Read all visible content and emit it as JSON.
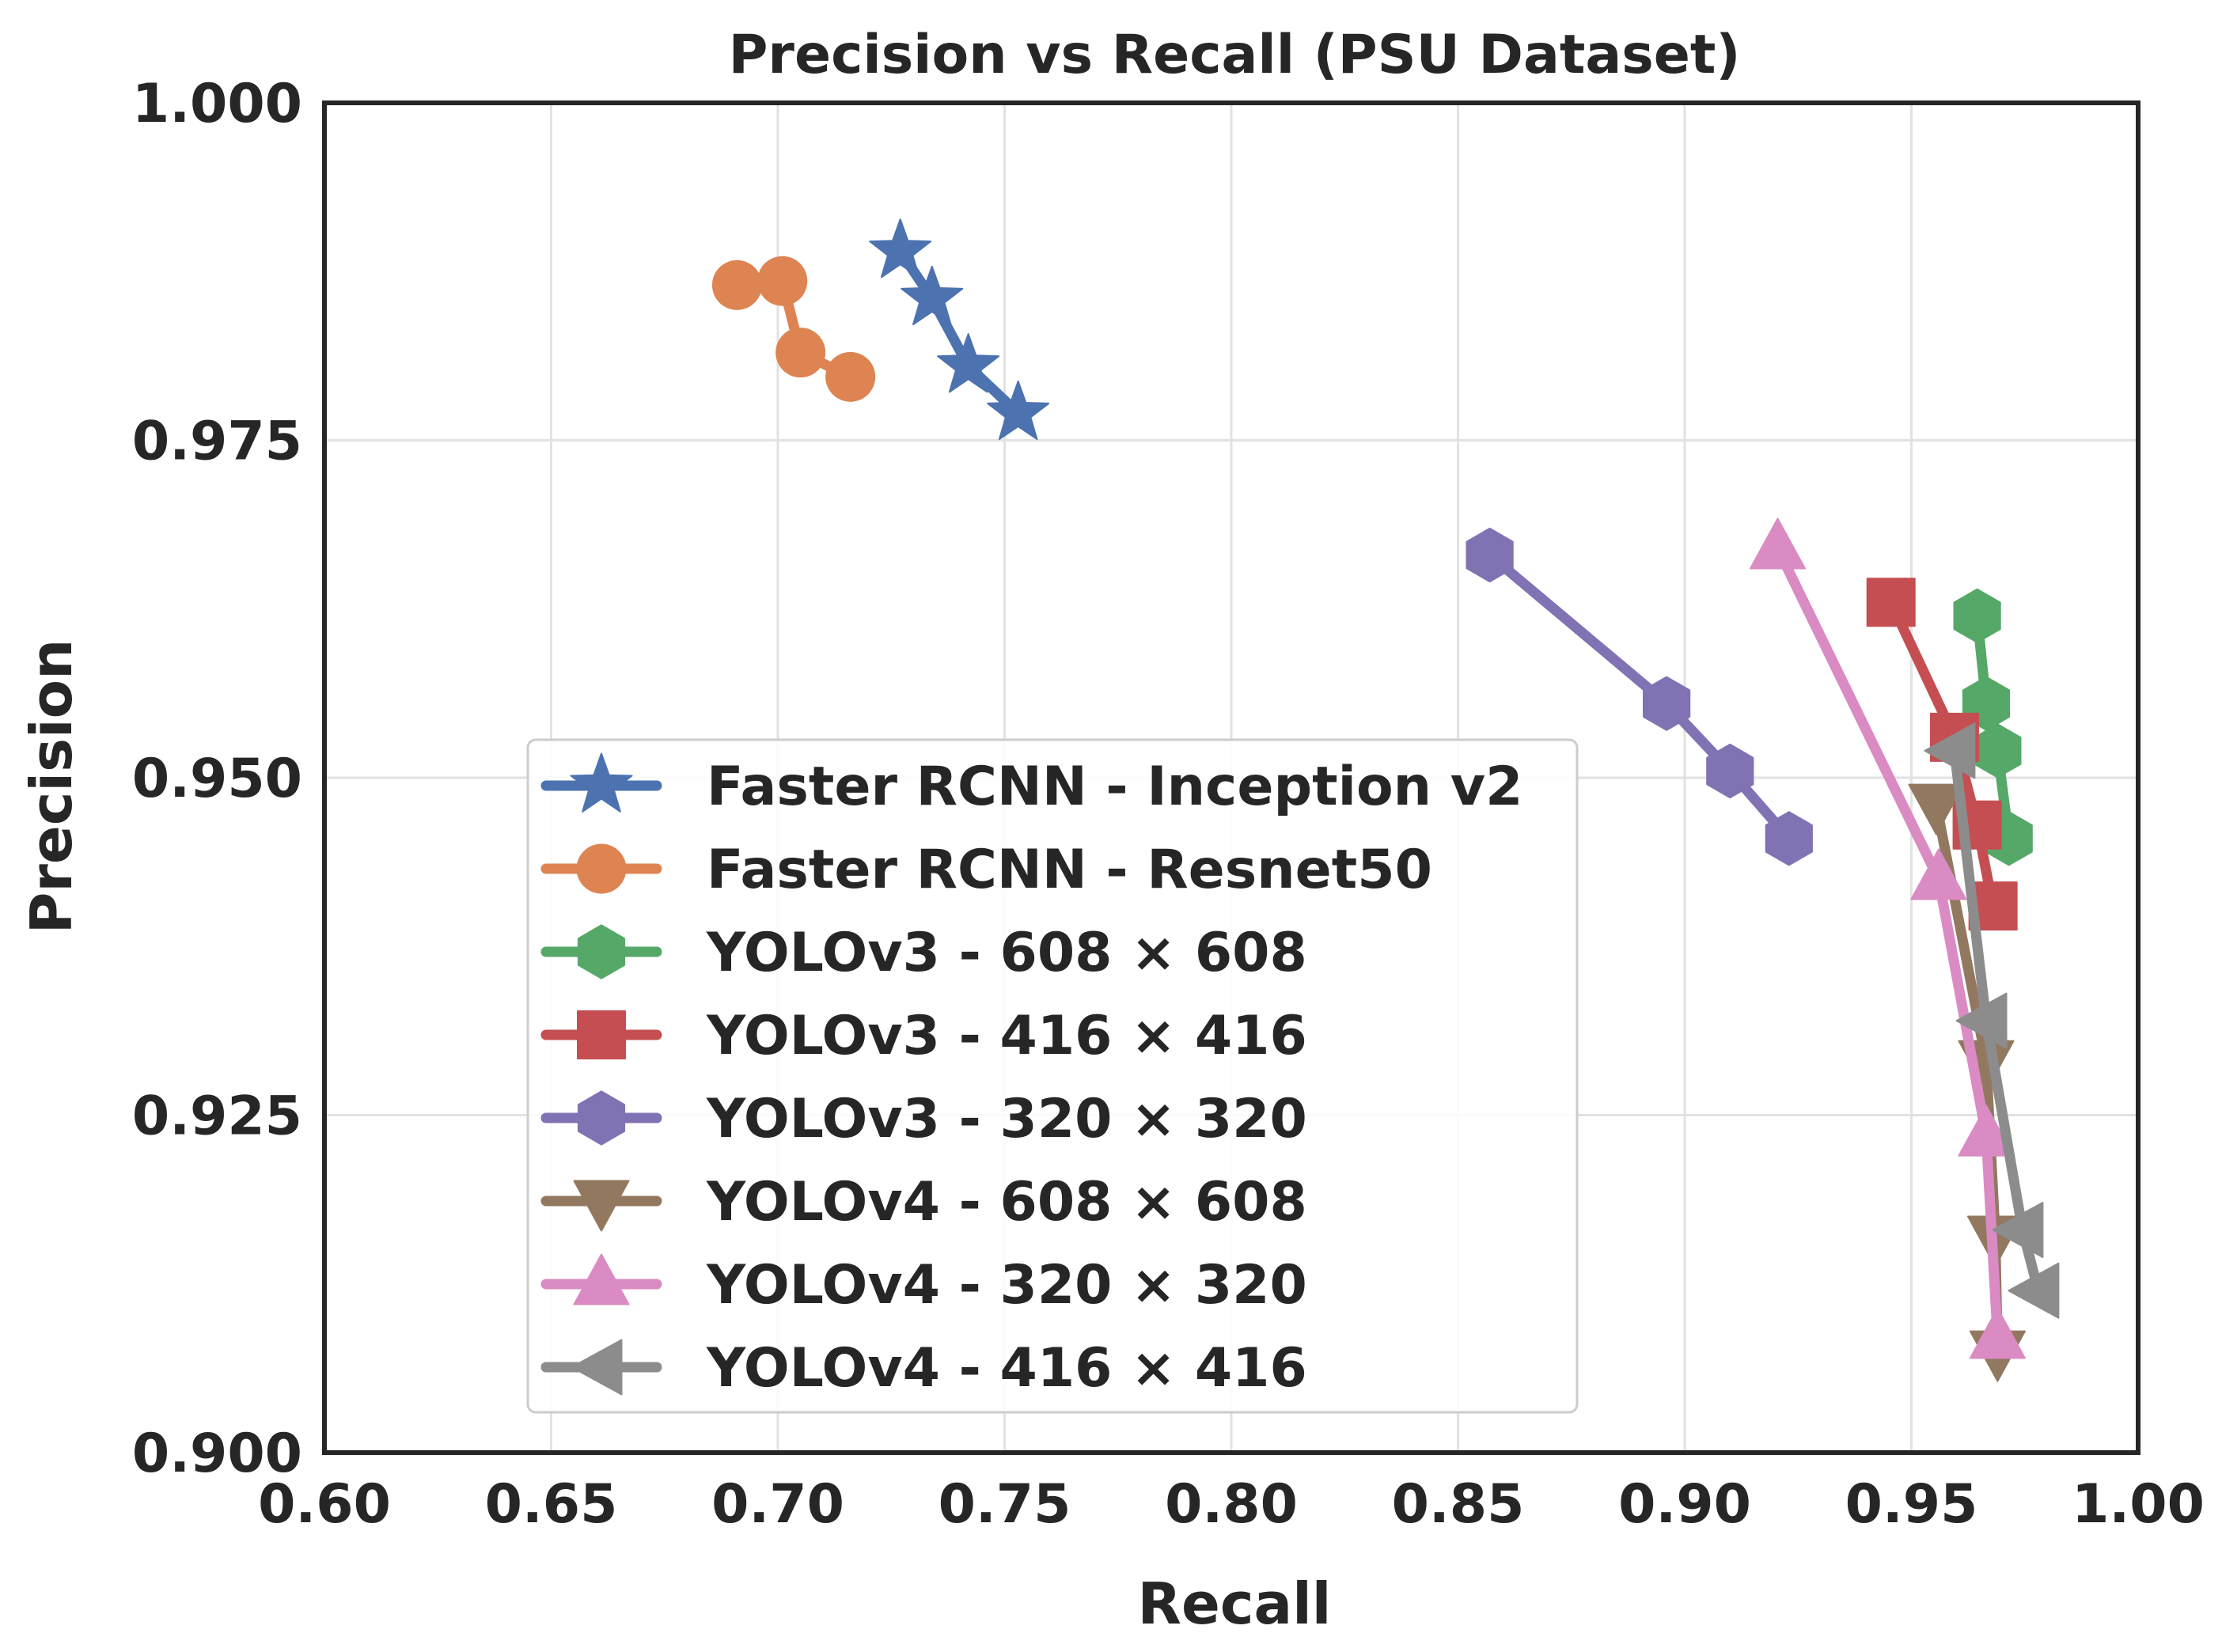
{
  "chart_data": {
    "type": "line",
    "title": "Precision vs Recall (PSU Dataset)",
    "xlabel": "Recall",
    "ylabel": "Precision",
    "xlim": [
      0.6,
      1.0
    ],
    "ylim": [
      0.9,
      1.0
    ],
    "xticks": [
      0.6,
      0.65,
      0.7,
      0.75,
      0.8,
      0.85,
      0.9,
      0.95,
      1.0
    ],
    "xtick_labels": [
      "0.60",
      "0.65",
      "0.70",
      "0.75",
      "0.80",
      "0.85",
      "0.90",
      "0.95",
      "1.00"
    ],
    "yticks": [
      0.9,
      0.925,
      0.95,
      0.975,
      1.0
    ],
    "ytick_labels": [
      "0.900",
      "0.925",
      "0.950",
      "0.975",
      "1.000"
    ],
    "grid": true,
    "legend_position": "lower-left",
    "series": [
      {
        "name": "Faster RCNN - Inception v2",
        "marker": "star",
        "color": "#4c72b0",
        "x": [
          0.727,
          0.734,
          0.742,
          0.753
        ],
        "y": [
          0.989,
          0.9855,
          0.9805,
          0.977
        ]
      },
      {
        "name": "Faster RCNN - Resnet50",
        "marker": "circle",
        "color": "#dd8452",
        "x": [
          0.691,
          0.701,
          0.705,
          0.716
        ],
        "y": [
          0.9865,
          0.9868,
          0.9815,
          0.9797
        ]
      },
      {
        "name": "YOLOv3 - 608 × 608",
        "marker": "hexagon",
        "color": "#55a868",
        "x": [
          0.9645,
          0.9665,
          0.969,
          0.9715
        ],
        "y": [
          0.962,
          0.9555,
          0.952,
          0.9455
        ]
      },
      {
        "name": "YOLOv3 - 416 × 416",
        "marker": "square",
        "color": "#c44e52",
        "x": [
          0.9455,
          0.9595,
          0.9645,
          0.968
        ],
        "y": [
          0.963,
          0.953,
          0.9465,
          0.9405
        ]
      },
      {
        "name": "YOLOv3 - 320 × 320",
        "marker": "hexagon",
        "color": "#8172b3",
        "x": [
          0.857,
          0.896,
          0.91,
          0.923
        ],
        "y": [
          0.9665,
          0.9555,
          0.9505,
          0.9455
        ]
      },
      {
        "name": "YOLOv4 - 608 × 608",
        "marker": "triangle-down",
        "color": "#937860",
        "x": [
          0.9555,
          0.9665,
          0.9685,
          0.969
        ],
        "y": [
          0.948,
          0.929,
          0.916,
          0.9075
        ]
      },
      {
        "name": "YOLOv4 - 320 × 320",
        "marker": "triangle-up",
        "color": "#da8bc3",
        "x": [
          0.9205,
          0.956,
          0.9665,
          0.969
        ],
        "y": [
          0.967,
          0.9425,
          0.9235,
          0.9085
        ]
      },
      {
        "name": "YOLOv4 - 416 × 416",
        "marker": "triangle-left",
        "color": "#8c8c8c",
        "x": [
          0.9595,
          0.9665,
          0.9745,
          0.978
        ],
        "y": [
          0.952,
          0.932,
          0.9165,
          0.912
        ]
      }
    ]
  }
}
